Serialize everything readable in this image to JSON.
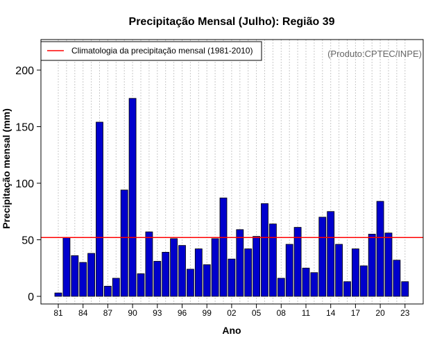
{
  "chart_data": {
    "type": "bar",
    "title": "Precipitação Mensal (Julho): Região 39",
    "xlabel": "Ano",
    "ylabel": "Precipitação mensal (mm)",
    "product_label": "(Produto:CPTEC/INPE)",
    "legend": {
      "label": "Climatologia da precipitação mensal (1981-2010)",
      "placement": "top-left"
    },
    "ylim": [
      0,
      225
    ],
    "yticks": [
      0,
      50,
      100,
      150,
      200
    ],
    "grid": "vertical dotted",
    "reference_line": {
      "value": 52,
      "color": "#ff0000"
    },
    "bar_color": "#0000cc",
    "categories": [
      "1981",
      "1982",
      "1983",
      "1984",
      "1985",
      "1986",
      "1987",
      "1988",
      "1989",
      "1990",
      "1991",
      "1992",
      "1993",
      "1994",
      "1995",
      "1996",
      "1997",
      "1998",
      "1999",
      "2000",
      "2001",
      "2002",
      "2003",
      "2004",
      "2005",
      "2006",
      "2007",
      "2008",
      "2009",
      "2010",
      "2011",
      "2012",
      "2013",
      "2014",
      "2015",
      "2016",
      "2017",
      "2018",
      "2019",
      "2020",
      "2021",
      "2022",
      "2023"
    ],
    "xtick_labels": [
      "81",
      "84",
      "87",
      "90",
      "93",
      "96",
      "99",
      "02",
      "05",
      "08",
      "11",
      "14",
      "17",
      "20",
      "23"
    ],
    "values": [
      3,
      52,
      36,
      30,
      38,
      154,
      9,
      16,
      94,
      175,
      20,
      57,
      31,
      39,
      51,
      45,
      24,
      42,
      28,
      51,
      87,
      33,
      59,
      42,
      53,
      82,
      64,
      16,
      46,
      61,
      25,
      21,
      70,
      75,
      46,
      13,
      42,
      27,
      55,
      84,
      56,
      32,
      13
    ]
  }
}
